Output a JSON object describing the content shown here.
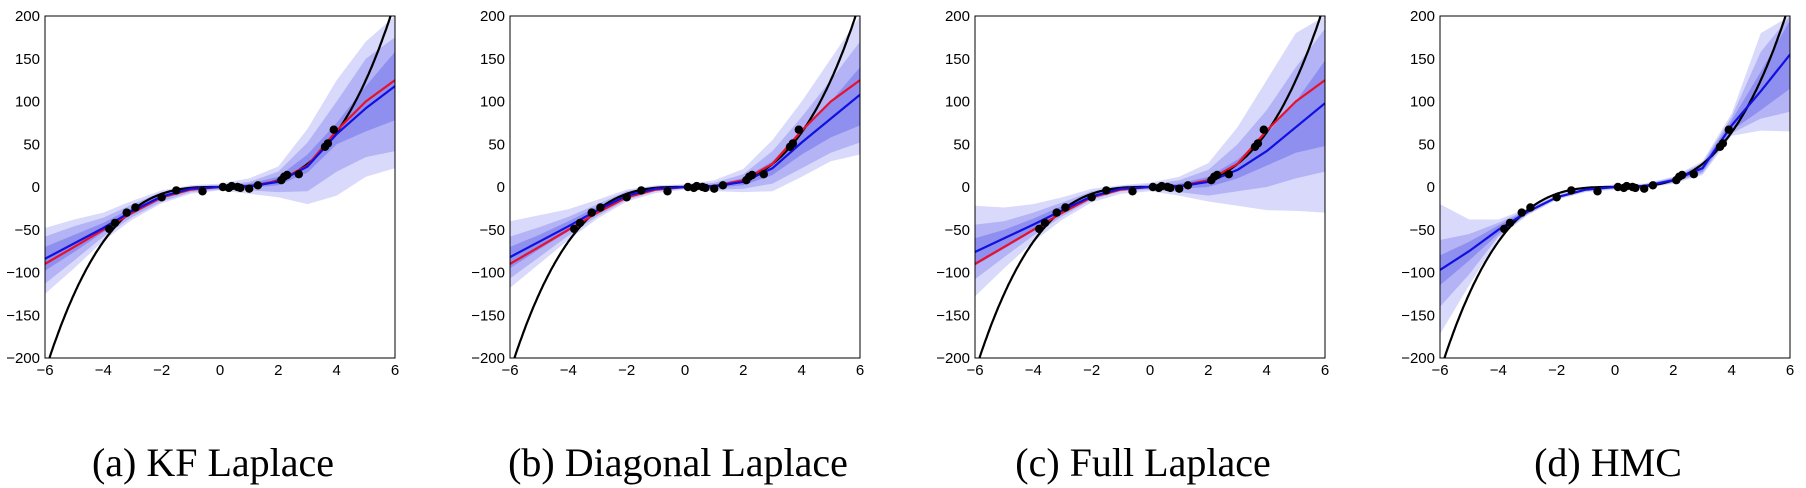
{
  "chart_data": [
    {
      "type": "line",
      "caption": "(a) KF Laplace",
      "xlim": [
        -6,
        6
      ],
      "ylim": [
        -200,
        200
      ],
      "xticks": [
        -6,
        -4,
        -2,
        0,
        2,
        4,
        6
      ],
      "yticks": [
        -200,
        -150,
        -100,
        -50,
        0,
        50,
        100,
        150,
        200
      ],
      "grid": false,
      "x": [
        -6,
        -5,
        -4,
        -3,
        -2,
        -1,
        0,
        1,
        2,
        3,
        4,
        5,
        6
      ],
      "series": [
        {
          "role": "truth",
          "color": "#000000",
          "function": "x^3"
        },
        {
          "role": "mean-1",
          "color": "#e8102a",
          "values": [
            -90,
            -70,
            -50,
            -30,
            -12,
            -3,
            0,
            1,
            7,
            25,
            66,
            100,
            125
          ]
        },
        {
          "role": "mean-2",
          "color": "#1010e0",
          "values": [
            -84,
            -66,
            -48,
            -28,
            -11,
            -2,
            0,
            1,
            6,
            24,
            62,
            92,
            118
          ]
        }
      ],
      "bands": [
        {
          "level": 1,
          "lower": [
            -98,
            -76,
            -53,
            -32,
            -14,
            -4,
            -1,
            -1,
            2,
            17,
            50,
            65,
            78
          ],
          "upper": [
            -70,
            -56,
            -42,
            -24,
            -8,
            0,
            1,
            4,
            12,
            38,
            75,
            118,
            158
          ]
        },
        {
          "level": 2,
          "lower": [
            -113,
            -86,
            -58,
            -35,
            -17,
            -6,
            -3,
            -4,
            -6,
            -5,
            18,
            35,
            42
          ],
          "upper": [
            -58,
            -46,
            -36,
            -20,
            -6,
            1,
            2,
            6,
            18,
            52,
            100,
            150,
            175
          ]
        },
        {
          "level": 3,
          "lower": [
            -125,
            -95,
            -63,
            -38,
            -19,
            -8,
            -4,
            -8,
            -12,
            -20,
            -10,
            12,
            22
          ],
          "upper": [
            -48,
            -38,
            -30,
            -16,
            -4,
            2,
            4,
            10,
            24,
            68,
            125,
            170,
            200
          ]
        }
      ],
      "points": [
        [
          -3.8,
          -49
        ],
        [
          -3.6,
          -42
        ],
        [
          -3.2,
          -30
        ],
        [
          -2.9,
          -24
        ],
        [
          -2,
          -12
        ],
        [
          -1.5,
          -4
        ],
        [
          -0.6,
          -5
        ],
        [
          0.1,
          0
        ],
        [
          0.3,
          -1
        ],
        [
          0.4,
          1
        ],
        [
          0.6,
          0
        ],
        [
          0.7,
          -1
        ],
        [
          1,
          -2
        ],
        [
          1.3,
          2
        ],
        [
          2.1,
          8
        ],
        [
          2.2,
          12
        ],
        [
          2.3,
          14
        ],
        [
          2.7,
          15
        ],
        [
          3.6,
          47
        ],
        [
          3.7,
          51
        ],
        [
          3.9,
          67
        ]
      ]
    },
    {
      "type": "line",
      "caption": "(b) Diagonal Laplace",
      "xlim": [
        -6,
        6
      ],
      "ylim": [
        -200,
        200
      ],
      "xticks": [
        -6,
        -4,
        -2,
        0,
        2,
        4,
        6
      ],
      "yticks": [
        -200,
        -150,
        -100,
        -50,
        0,
        50,
        100,
        150,
        200
      ],
      "grid": false,
      "x": [
        -6,
        -5,
        -4,
        -3,
        -2,
        -1,
        0,
        1,
        2,
        3,
        4,
        5,
        6
      ],
      "series": [
        {
          "role": "truth",
          "color": "#000000",
          "function": "x^3"
        },
        {
          "role": "mean-1",
          "color": "#e8102a",
          "values": [
            -90,
            -70,
            -50,
            -30,
            -12,
            -3,
            0,
            1,
            8,
            27,
            66,
            100,
            125
          ]
        },
        {
          "role": "mean-2",
          "color": "#1010e0",
          "values": [
            -82,
            -64,
            -46,
            -27,
            -10,
            -2,
            0,
            1,
            6,
            22,
            52,
            80,
            108
          ]
        }
      ],
      "bands": [
        {
          "level": 1,
          "lower": [
            -95,
            -73,
            -52,
            -31,
            -13,
            -4,
            -1,
            -1,
            2,
            14,
            38,
            58,
            72
          ],
          "upper": [
            -70,
            -56,
            -40,
            -23,
            -7,
            0,
            1,
            3,
            10,
            30,
            66,
            100,
            140
          ]
        },
        {
          "level": 2,
          "lower": [
            -107,
            -82,
            -57,
            -34,
            -15,
            -5,
            -2,
            -3,
            -2,
            4,
            22,
            40,
            52
          ],
          "upper": [
            -58,
            -47,
            -35,
            -20,
            -5,
            1,
            2,
            5,
            15,
            42,
            82,
            125,
            170
          ]
        },
        {
          "level": 3,
          "lower": [
            -118,
            -90,
            -62,
            -37,
            -17,
            -7,
            -3,
            -5,
            -6,
            -5,
            12,
            30,
            38
          ],
          "upper": [
            -40,
            -33,
            -26,
            -15,
            -3,
            2,
            3,
            8,
            21,
            55,
            100,
            150,
            200
          ]
        }
      ],
      "points": [
        [
          -3.8,
          -49
        ],
        [
          -3.6,
          -42
        ],
        [
          -3.2,
          -30
        ],
        [
          -2.9,
          -24
        ],
        [
          -2,
          -12
        ],
        [
          -1.5,
          -4
        ],
        [
          -0.6,
          -5
        ],
        [
          0.1,
          0
        ],
        [
          0.3,
          -1
        ],
        [
          0.4,
          1
        ],
        [
          0.6,
          0
        ],
        [
          0.7,
          -1
        ],
        [
          1,
          -2
        ],
        [
          1.3,
          2
        ],
        [
          2.1,
          8
        ],
        [
          2.2,
          12
        ],
        [
          2.3,
          14
        ],
        [
          2.7,
          15
        ],
        [
          3.6,
          47
        ],
        [
          3.7,
          51
        ],
        [
          3.9,
          67
        ]
      ]
    },
    {
      "type": "line",
      "caption": "(c) Full Laplace",
      "xlim": [
        -6,
        6
      ],
      "ylim": [
        -200,
        200
      ],
      "xticks": [
        -6,
        -4,
        -2,
        0,
        2,
        4,
        6
      ],
      "yticks": [
        -200,
        -150,
        -100,
        -50,
        0,
        50,
        100,
        150,
        200
      ],
      "grid": false,
      "x": [
        -6,
        -5,
        -4,
        -3,
        -2,
        -1,
        0,
        1,
        2,
        3,
        4,
        5,
        6
      ],
      "series": [
        {
          "role": "truth",
          "color": "#000000",
          "function": "x^3"
        },
        {
          "role": "mean-1",
          "color": "#e8102a",
          "values": [
            -90,
            -70,
            -50,
            -30,
            -12,
            -3,
            0,
            1,
            8,
            27,
            66,
            100,
            125
          ]
        },
        {
          "role": "mean-2",
          "color": "#1010e0",
          "values": [
            -76,
            -60,
            -44,
            -27,
            -11,
            -2,
            0,
            1,
            6,
            20,
            42,
            70,
            98
          ]
        }
      ],
      "bands": [
        {
          "level": 1,
          "lower": [
            -92,
            -72,
            -52,
            -31,
            -13,
            -4,
            -1,
            -2,
            0,
            10,
            25,
            40,
            48
          ],
          "upper": [
            -60,
            -50,
            -37,
            -22,
            -8,
            0,
            1,
            4,
            12,
            32,
            62,
            100,
            148
          ]
        },
        {
          "level": 2,
          "lower": [
            -108,
            -82,
            -57,
            -34,
            -15,
            -5,
            -3,
            -6,
            -10,
            -5,
            0,
            10,
            18
          ],
          "upper": [
            -44,
            -40,
            -30,
            -18,
            -5,
            1,
            3,
            8,
            20,
            50,
            90,
            140,
            185
          ]
        },
        {
          "level": 3,
          "lower": [
            -128,
            -95,
            -64,
            -38,
            -18,
            -8,
            -5,
            -10,
            -17,
            -22,
            -27,
            -28,
            -30
          ],
          "upper": [
            -22,
            -24,
            -20,
            -12,
            -2,
            2,
            5,
            12,
            28,
            70,
            125,
            180,
            200
          ]
        }
      ],
      "points": [
        [
          -3.8,
          -49
        ],
        [
          -3.6,
          -42
        ],
        [
          -3.2,
          -30
        ],
        [
          -2.9,
          -24
        ],
        [
          -2,
          -12
        ],
        [
          -1.5,
          -4
        ],
        [
          -0.6,
          -5
        ],
        [
          0.1,
          0
        ],
        [
          0.3,
          -1
        ],
        [
          0.4,
          1
        ],
        [
          0.6,
          0
        ],
        [
          0.7,
          -1
        ],
        [
          1,
          -2
        ],
        [
          1.3,
          2
        ],
        [
          2.1,
          8
        ],
        [
          2.2,
          12
        ],
        [
          2.3,
          14
        ],
        [
          2.7,
          15
        ],
        [
          3.6,
          47
        ],
        [
          3.7,
          51
        ],
        [
          3.9,
          67
        ]
      ]
    },
    {
      "type": "line",
      "caption": "(d) HMC",
      "xlim": [
        -6,
        6
      ],
      "ylim": [
        -200,
        200
      ],
      "xticks": [
        -6,
        -4,
        -2,
        0,
        2,
        4,
        6
      ],
      "yticks": [
        -200,
        -150,
        -100,
        -50,
        0,
        50,
        100,
        150,
        200
      ],
      "grid": false,
      "x": [
        -6,
        -5,
        -4,
        -3,
        -2,
        -1,
        0,
        1,
        2,
        3,
        4,
        5,
        6
      ],
      "series": [
        {
          "role": "truth",
          "color": "#000000",
          "function": "x^3"
        },
        {
          "role": "mean",
          "color": "#1010e0",
          "values": [
            -97,
            -75,
            -50,
            -29,
            -12,
            -3,
            0,
            1,
            8,
            22,
            72,
            112,
            155
          ]
        }
      ],
      "bands": [
        {
          "level": 1,
          "lower": [
            -115,
            -86,
            -55,
            -31,
            -13,
            -4,
            -1,
            0,
            6,
            18,
            66,
            90,
            115
          ],
          "upper": [
            -80,
            -64,
            -45,
            -27,
            -11,
            -2,
            1,
            2,
            10,
            26,
            78,
            135,
            195
          ]
        },
        {
          "level": 2,
          "lower": [
            -140,
            -102,
            -58,
            -32,
            -14,
            -5,
            -2,
            -1,
            5,
            16,
            63,
            80,
            88
          ],
          "upper": [
            -62,
            -55,
            -42,
            -26,
            -10,
            -1,
            2,
            3,
            11,
            28,
            82,
            158,
            200
          ]
        },
        {
          "level": 3,
          "lower": [
            -172,
            -115,
            -60,
            -33,
            -15,
            -6,
            -3,
            -2,
            4,
            14,
            60,
            66,
            65
          ],
          "upper": [
            -20,
            -38,
            -38,
            -25,
            -9,
            0,
            3,
            4,
            12,
            30,
            86,
            180,
            200
          ]
        }
      ],
      "points": [
        [
          -3.8,
          -49
        ],
        [
          -3.6,
          -42
        ],
        [
          -3.2,
          -30
        ],
        [
          -2.9,
          -24
        ],
        [
          -2,
          -12
        ],
        [
          -1.5,
          -4
        ],
        [
          -0.6,
          -5
        ],
        [
          0.1,
          0
        ],
        [
          0.3,
          -1
        ],
        [
          0.4,
          1
        ],
        [
          0.6,
          0
        ],
        [
          0.7,
          -1
        ],
        [
          1,
          -2
        ],
        [
          1.3,
          2
        ],
        [
          2.1,
          8
        ],
        [
          2.2,
          12
        ],
        [
          2.3,
          14
        ],
        [
          2.7,
          15
        ],
        [
          3.6,
          47
        ],
        [
          3.7,
          51
        ],
        [
          3.9,
          67
        ]
      ]
    }
  ],
  "colors": {
    "band_levels": [
      "#8f8ff0",
      "#b3b3f5",
      "#d9d9fb"
    ],
    "point": "#000000",
    "axes": "#000000"
  }
}
